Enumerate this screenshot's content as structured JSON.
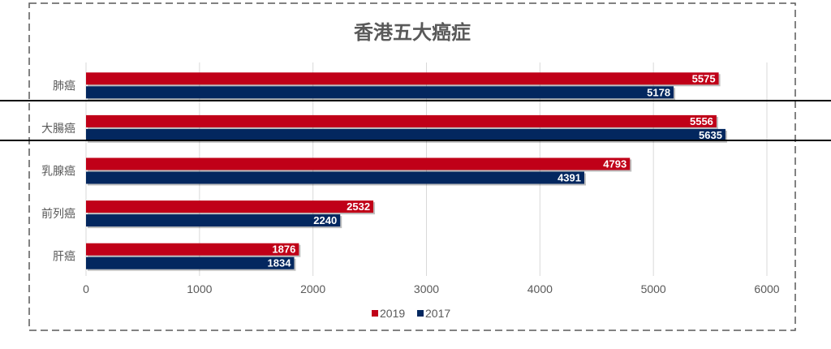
{
  "chart_data": {
    "type": "bar",
    "orientation": "horizontal",
    "title": "香港五大癌症",
    "categories": [
      "肺癌",
      "大腸癌",
      "乳腺癌",
      "前列癌",
      "肝癌"
    ],
    "series": [
      {
        "name": "2019",
        "color": "#C00018",
        "values": [
          5575,
          5556,
          4793,
          2532,
          1876
        ]
      },
      {
        "name": "2017",
        "color": "#03275F",
        "values": [
          5178,
          5635,
          4391,
          2240,
          1834
        ]
      }
    ],
    "xlim": [
      0,
      6000
    ],
    "xticks": [
      "0",
      "1000",
      "2000",
      "3000",
      "4000",
      "5000",
      "6000"
    ],
    "grid": true,
    "data_labels": true,
    "legend": "bottom"
  }
}
